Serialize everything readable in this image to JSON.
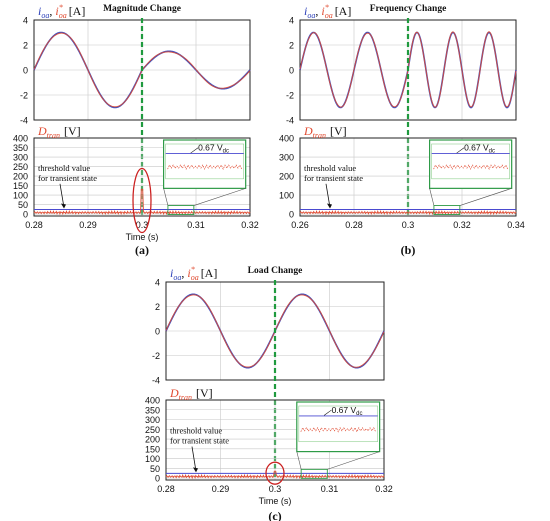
{
  "chart_data": [
    {
      "id": "a",
      "type": "line",
      "caption": "(a)",
      "event_label": "Magnitude Change",
      "current_panel": {
        "ylabel_prefix": "i",
        "ylabel_unit": "[A]",
        "ylim": [
          -4,
          4
        ],
        "yticks": [
          "4",
          "2",
          "0",
          "-2",
          "-4"
        ],
        "xlim": [
          0.28,
          0.32
        ],
        "event_x": 0.3,
        "series": [
          {
            "name": "i_oa",
            "color": "#2b3fb8",
            "params": [
              {
                "x0": 0.28,
                "x1": 0.3,
                "amp": 3.0,
                "freq": 50
              },
              {
                "x0": 0.3,
                "x1": 0.32,
                "amp": 1.5,
                "freq": 50
              }
            ]
          },
          {
            "name": "i*_oa",
            "color": "#e0492f",
            "params": [
              {
                "x0": 0.28,
                "x1": 0.3,
                "amp": 3.0,
                "freq": 50
              },
              {
                "x0": 0.3,
                "x1": 0.32,
                "amp": 1.5,
                "freq": 50
              }
            ]
          }
        ]
      },
      "dtran_panel": {
        "ylabel": "D",
        "ylabel_sub": "tran",
        "ylabel_unit": "[V]",
        "ylim": [
          -10,
          400
        ],
        "yticks": [
          "400",
          "350",
          "300",
          "250",
          "200",
          "150",
          "100",
          "50",
          "0"
        ],
        "xticks": [
          "0.28",
          "0.29",
          "0.3",
          "0.31",
          "0.32"
        ],
        "xlabel": "Time (s)",
        "threshold_label_1": "threshold value",
        "threshold_label_2": "for transient state",
        "inset_label": "0.67 V",
        "inset_label_sub": "dc",
        "spike_peak": 130,
        "circled": true
      }
    },
    {
      "id": "b",
      "type": "line",
      "caption": "(b)",
      "event_label": "Frequency Change",
      "current_panel": {
        "ylabel_prefix": "i",
        "ylabel_unit": "[A]",
        "ylim": [
          -4,
          4
        ],
        "yticks": [
          "4",
          "2",
          "0",
          "-2",
          "-4"
        ],
        "xlim": [
          0.26,
          0.34
        ],
        "event_x": 0.3,
        "series": [
          {
            "name": "i_oa",
            "color": "#2b3fb8",
            "params": [
              {
                "x0": 0.26,
                "x1": 0.3,
                "amp": 3.0,
                "freq": 50
              },
              {
                "x0": 0.3,
                "x1": 0.34,
                "amp": 3.0,
                "freq": 75
              }
            ]
          },
          {
            "name": "i*_oa",
            "color": "#e0492f",
            "params": [
              {
                "x0": 0.26,
                "x1": 0.3,
                "amp": 3.0,
                "freq": 50
              },
              {
                "x0": 0.3,
                "x1": 0.34,
                "amp": 3.0,
                "freq": 75
              }
            ]
          }
        ]
      },
      "dtran_panel": {
        "ylabel": "D",
        "ylabel_sub": "tran",
        "ylabel_unit": "[V]",
        "ylim": [
          -10,
          400
        ],
        "yticks": [
          "400",
          "300",
          "200",
          "100",
          "0"
        ],
        "xticks": [
          "0.26",
          "0.28",
          "0.3",
          "0.32",
          "0.34"
        ],
        "xlabel": "",
        "threshold_label_1": "threshold value",
        "threshold_label_2": "for transient state",
        "inset_label": "0.67 V",
        "inset_label_sub": "dc",
        "spike_peak": 0,
        "circled": false
      }
    },
    {
      "id": "c",
      "type": "line",
      "caption": "(c)",
      "event_label": "Load Change",
      "current_panel": {
        "ylabel_prefix": "i",
        "ylabel_unit": "[A]",
        "ylim": [
          -4,
          4
        ],
        "yticks": [
          "4",
          "2",
          "0",
          "-2",
          "-4"
        ],
        "xlim": [
          0.28,
          0.32
        ],
        "event_x": 0.3,
        "series": [
          {
            "name": "i_oa",
            "color": "#2b3fb8",
            "params": [
              {
                "x0": 0.28,
                "x1": 0.3,
                "amp": 3.0,
                "freq": 50
              },
              {
                "x0": 0.3,
                "x1": 0.32,
                "amp": 3.0,
                "freq": 50
              }
            ]
          },
          {
            "name": "i*_oa",
            "color": "#e0492f",
            "params": [
              {
                "x0": 0.28,
                "x1": 0.3,
                "amp": 3.0,
                "freq": 50
              },
              {
                "x0": 0.3,
                "x1": 0.32,
                "amp": 3.0,
                "freq": 50
              }
            ]
          }
        ]
      },
      "dtran_panel": {
        "ylabel": "D",
        "ylabel_sub": "tran",
        "ylabel_unit": "[V]",
        "ylim": [
          -10,
          400
        ],
        "yticks": [
          "400",
          "350",
          "300",
          "250",
          "200",
          "150",
          "100",
          "50",
          "0"
        ],
        "xticks": [
          "0.28",
          "0.29",
          "0.3",
          "0.31",
          "0.32"
        ],
        "xlabel": "Time (s)",
        "threshold_label_1": "threshold value",
        "threshold_label_2": "for transient state",
        "inset_label": "0.67 V",
        "inset_label_sub": "dc",
        "spike_peak": 35,
        "circled": true
      }
    }
  ],
  "colors": {
    "blue": "#2b3fb8",
    "red": "#e0492f",
    "event": "#1f9a3e",
    "inset": "#2e9b47",
    "grid": "#c8c8c8",
    "threshold": "#4a4ad0"
  }
}
